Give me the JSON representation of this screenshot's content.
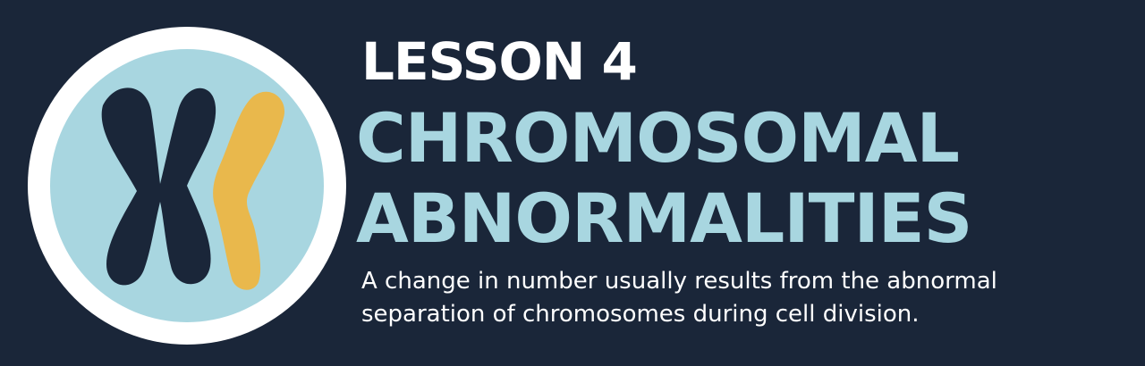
{
  "banner": {
    "lesson_label": "LESSON 4",
    "title_line_1": "CHROMOSOMAL",
    "title_line_2": "ABNORMALITIES",
    "subtitle_line_1": "A change in number usually results from the abnormal",
    "subtitle_line_2": "separation of chromosomes during cell division."
  },
  "emblem": {
    "icon": "chromosome-icon",
    "ring_color": "#ffffff",
    "fill_color": "#a8d6e0",
    "chromosome_x_color": "#1a2639",
    "chromatid_color": "#e9b84c"
  },
  "colors": {
    "background": "#1a2639",
    "title": "#a8d6e0",
    "text": "#ffffff"
  }
}
